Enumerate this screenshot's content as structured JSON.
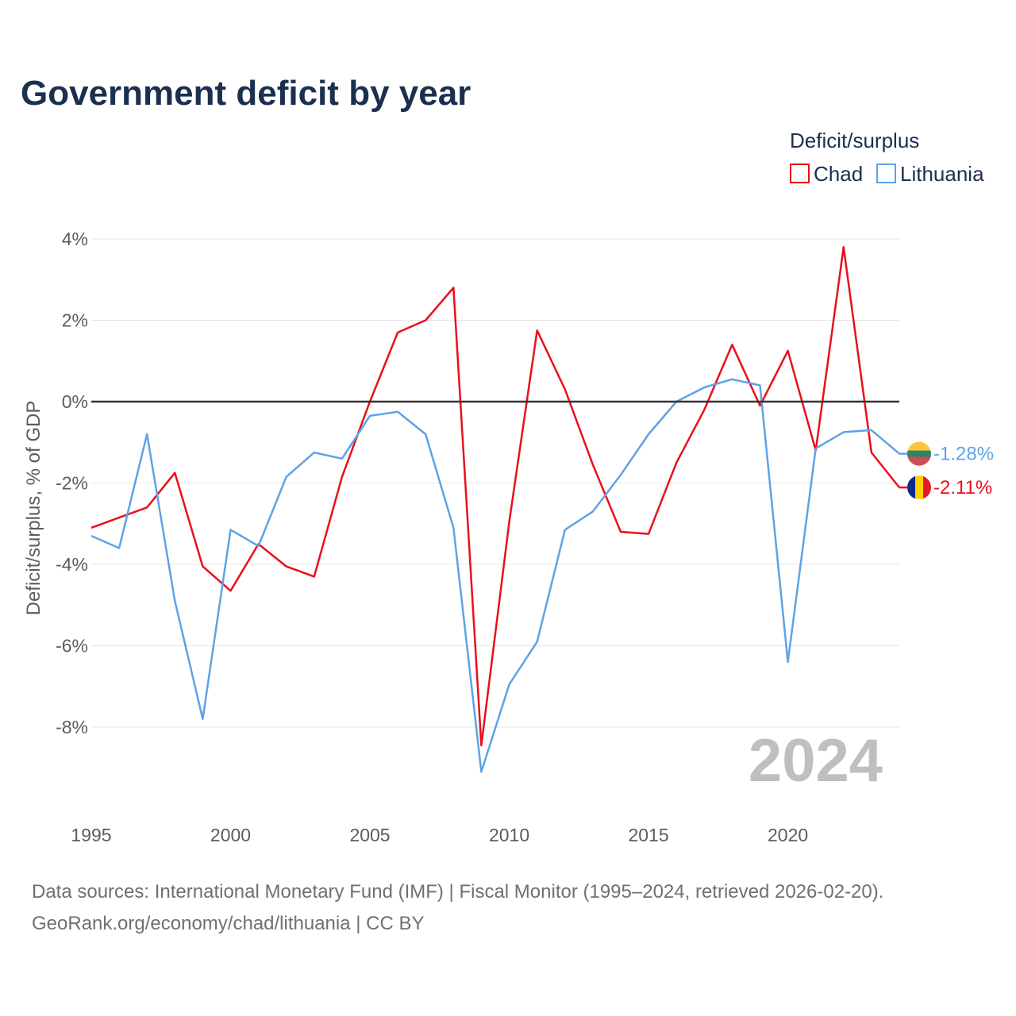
{
  "title": "Government deficit by year",
  "legend": {
    "title": "Deficit/surplus",
    "position": "top-right"
  },
  "watermark_year": "2024",
  "footer": {
    "line1": "Data sources: International Monetary Fund (IMF) | Fiscal Monitor (1995–2024, retrieved 2026-02-20).",
    "line2": "GeoRank.org/economy/chad/lithuania | CC BY"
  },
  "chart_data": {
    "type": "line",
    "title": "Government deficit by year",
    "xlabel": "",
    "ylabel": "Deficit/surplus, % of GDP",
    "xlim": [
      1995,
      2024
    ],
    "ylim": [
      -9.2,
      4.2
    ],
    "grid": true,
    "x_ticks": [
      1995,
      2000,
      2005,
      2010,
      2015,
      2020
    ],
    "x_tick_labels": [
      "1995",
      "2000",
      "2005",
      "2010",
      "2015",
      "2020"
    ],
    "y_ticks": [
      4,
      2,
      0,
      -2,
      -4,
      -6,
      -8
    ],
    "y_tick_labels": [
      "4%",
      "2%",
      "0%",
      "-2%",
      "-4%",
      "-6%",
      "-8%"
    ],
    "x": [
      1995,
      1996,
      1997,
      1998,
      1999,
      2000,
      2001,
      2002,
      2003,
      2004,
      2005,
      2006,
      2007,
      2008,
      2009,
      2010,
      2011,
      2012,
      2013,
      2014,
      2015,
      2016,
      2017,
      2018,
      2019,
      2020,
      2021,
      2022,
      2023,
      2024
    ],
    "series": [
      {
        "name": "Chad",
        "color": "#e8101b",
        "end_label": "-2.11%",
        "flag": "chad-flag",
        "values": [
          -3.1,
          -2.85,
          -2.6,
          -1.75,
          -4.05,
          -4.65,
          -3.5,
          -4.05,
          -4.3,
          -1.85,
          0.0,
          1.7,
          2.0,
          2.8,
          -8.45,
          -2.95,
          1.75,
          0.3,
          -1.55,
          -3.2,
          -3.25,
          -1.5,
          -0.2,
          1.4,
          -0.1,
          1.25,
          -1.2,
          3.8,
          -1.25,
          -2.11
        ]
      },
      {
        "name": "Lithuania",
        "color": "#5da3e6",
        "end_label": "-1.28%",
        "flag": "lithuania-flag",
        "values": [
          -3.3,
          -3.6,
          -0.8,
          -4.9,
          -7.8,
          -3.15,
          -3.55,
          -1.85,
          -1.25,
          -1.4,
          -0.35,
          -0.25,
          -0.8,
          -3.1,
          -9.1,
          -6.95,
          -5.9,
          -3.15,
          -2.7,
          -1.8,
          -0.8,
          0.0,
          0.35,
          0.55,
          0.4,
          -6.4,
          -1.15,
          -0.75,
          -0.7,
          -1.28
        ]
      }
    ]
  }
}
